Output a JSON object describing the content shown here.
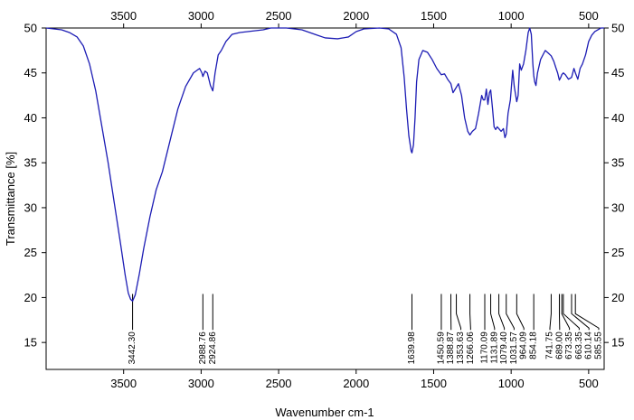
{
  "chart_data": {
    "type": "line",
    "title": "",
    "xlabel": "Wavenumber cm-1",
    "ylabel": "Transmittance [%]",
    "xlim": [
      4000,
      400
    ],
    "ylim": [
      12,
      50
    ],
    "x_ticks": [
      3500,
      3000,
      2500,
      2000,
      1500,
      1000,
      500
    ],
    "y_ticks": [
      15,
      20,
      25,
      30,
      35,
      40,
      45,
      50
    ],
    "grid": false,
    "line_color": "#1c1cb4",
    "series": [
      {
        "name": "",
        "points": [
          [
            4000,
            50.0
          ],
          [
            3900,
            49.8
          ],
          [
            3850,
            49.5
          ],
          [
            3800,
            49.0
          ],
          [
            3760,
            48.0
          ],
          [
            3720,
            46.0
          ],
          [
            3680,
            43.0
          ],
          [
            3640,
            39.0
          ],
          [
            3600,
            35.0
          ],
          [
            3560,
            30.5
          ],
          [
            3520,
            26.0
          ],
          [
            3490,
            22.5
          ],
          [
            3470,
            20.5
          ],
          [
            3455,
            19.8
          ],
          [
            3442.3,
            19.6
          ],
          [
            3425,
            20.3
          ],
          [
            3400,
            22.5
          ],
          [
            3370,
            25.5
          ],
          [
            3330,
            29.0
          ],
          [
            3290,
            32.0
          ],
          [
            3250,
            34.0
          ],
          [
            3200,
            37.5
          ],
          [
            3150,
            41.0
          ],
          [
            3100,
            43.5
          ],
          [
            3050,
            45.0
          ],
          [
            3010,
            45.5
          ],
          [
            2995,
            45.0
          ],
          [
            2988.76,
            44.6
          ],
          [
            2975,
            45.2
          ],
          [
            2960,
            45.0
          ],
          [
            2940,
            43.6
          ],
          [
            2924.86,
            43.0
          ],
          [
            2910,
            45.0
          ],
          [
            2890,
            47.0
          ],
          [
            2870,
            47.5
          ],
          [
            2840,
            48.5
          ],
          [
            2800,
            49.3
          ],
          [
            2750,
            49.5
          ],
          [
            2700,
            49.6
          ],
          [
            2600,
            49.8
          ],
          [
            2550,
            50.0
          ],
          [
            2450,
            50.0
          ],
          [
            2350,
            49.8
          ],
          [
            2250,
            49.2
          ],
          [
            2200,
            48.9
          ],
          [
            2120,
            48.8
          ],
          [
            2050,
            49.0
          ],
          [
            2000,
            49.6
          ],
          [
            1950,
            49.9
          ],
          [
            1850,
            50.0
          ],
          [
            1790,
            49.9
          ],
          [
            1740,
            49.3
          ],
          [
            1710,
            47.8
          ],
          [
            1690,
            44.5
          ],
          [
            1675,
            41.0
          ],
          [
            1660,
            38.0
          ],
          [
            1645,
            36.3
          ],
          [
            1639.98,
            36.1
          ],
          [
            1630,
            37.0
          ],
          [
            1620,
            40.0
          ],
          [
            1610,
            44.0
          ],
          [
            1595,
            46.5
          ],
          [
            1570,
            47.5
          ],
          [
            1540,
            47.3
          ],
          [
            1510,
            46.5
          ],
          [
            1480,
            45.5
          ],
          [
            1450.59,
            44.8
          ],
          [
            1430,
            44.9
          ],
          [
            1410,
            44.3
          ],
          [
            1388.87,
            43.8
          ],
          [
            1375,
            42.8
          ],
          [
            1353.63,
            43.4
          ],
          [
            1340,
            43.8
          ],
          [
            1320,
            42.5
          ],
          [
            1300,
            40.0
          ],
          [
            1280,
            38.5
          ],
          [
            1266.06,
            38.1
          ],
          [
            1250,
            38.5
          ],
          [
            1230,
            38.8
          ],
          [
            1210,
            40.5
          ],
          [
            1190,
            42.5
          ],
          [
            1180,
            42.0
          ],
          [
            1170.09,
            42.0
          ],
          [
            1160,
            43.2
          ],
          [
            1150,
            41.5
          ],
          [
            1140,
            42.8
          ],
          [
            1131.89,
            43.1
          ],
          [
            1120,
            41.0
          ],
          [
            1110,
            39.0
          ],
          [
            1100,
            38.7
          ],
          [
            1090,
            39.0
          ],
          [
            1079.4,
            38.8
          ],
          [
            1065,
            38.5
          ],
          [
            1050,
            38.8
          ],
          [
            1040,
            37.8
          ],
          [
            1031.57,
            38.2
          ],
          [
            1020,
            40.5
          ],
          [
            1005,
            42.0
          ],
          [
            990,
            45.3
          ],
          [
            980,
            43.5
          ],
          [
            964.09,
            41.8
          ],
          [
            955,
            42.5
          ],
          [
            945,
            46.0
          ],
          [
            935,
            45.3
          ],
          [
            920,
            46.0
          ],
          [
            905,
            47.5
          ],
          [
            890,
            49.5
          ],
          [
            880,
            50.0
          ],
          [
            870,
            49.3
          ],
          [
            860,
            46.0
          ],
          [
            854.18,
            44.7
          ],
          [
            848,
            44.0
          ],
          [
            840,
            43.6
          ],
          [
            830,
            45.0
          ],
          [
            810,
            46.5
          ],
          [
            780,
            47.5
          ],
          [
            760,
            47.2
          ],
          [
            741.75,
            46.9
          ],
          [
            725,
            46.3
          ],
          [
            710,
            45.5
          ],
          [
            700,
            45.0
          ],
          [
            689,
            44.2
          ],
          [
            680,
            44.5
          ],
          [
            673.35,
            44.8
          ],
          [
            663.35,
            45.0
          ],
          [
            650,
            44.8
          ],
          [
            630,
            44.3
          ],
          [
            610.14,
            44.5
          ],
          [
            595,
            45.5
          ],
          [
            585.55,
            45.0
          ],
          [
            570,
            44.3
          ],
          [
            555,
            45.5
          ],
          [
            540,
            46.0
          ],
          [
            520,
            47.0
          ],
          [
            500,
            48.5
          ],
          [
            480,
            49.2
          ],
          [
            460,
            49.6
          ],
          [
            440,
            49.8
          ],
          [
            420,
            50.0
          ],
          [
            400,
            50.0
          ]
        ]
      }
    ],
    "annotations": [
      {
        "x": 3442.3,
        "label": "3442.30"
      },
      {
        "x": 2988.76,
        "label": "2988.76"
      },
      {
        "x": 2924.86,
        "label": "2924.86"
      },
      {
        "x": 1639.98,
        "label": "1639.98"
      },
      {
        "x": 1450.59,
        "label": "1450.59"
      },
      {
        "x": 1388.87,
        "label": "1388.87"
      },
      {
        "x": 1353.63,
        "label": "1353.63"
      },
      {
        "x": 1266.06,
        "label": "1266.06"
      },
      {
        "x": 1170.09,
        "label": "1170.09"
      },
      {
        "x": 1131.89,
        "label": "1131.89"
      },
      {
        "x": 1079.4,
        "label": "1079.40"
      },
      {
        "x": 1031.57,
        "label": "1031.57"
      },
      {
        "x": 964.09,
        "label": "964.09"
      },
      {
        "x": 854.18,
        "label": "854.18"
      },
      {
        "x": 741.75,
        "label": "741.75"
      },
      {
        "x": 689.0,
        "label": "689.00"
      },
      {
        "x": 673.35,
        "label": "673.35"
      },
      {
        "x": 663.35,
        "label": "663.35"
      },
      {
        "x": 610.14,
        "label": "610.14"
      },
      {
        "x": 585.55,
        "label": "585.55"
      }
    ]
  }
}
